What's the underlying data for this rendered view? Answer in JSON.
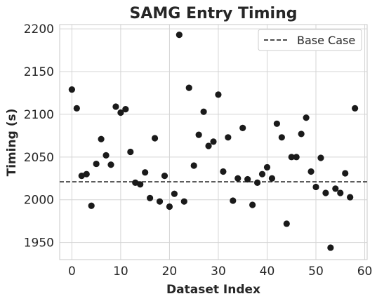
{
  "chart_data": {
    "type": "scatter",
    "title": "SAMG Entry Timing",
    "xlabel": "Dataset Index",
    "ylabel": "Timing (s)",
    "xlim": [
      -2.5,
      60.5
    ],
    "ylim": [
      1930,
      2205
    ],
    "xticks": [
      0,
      10,
      20,
      30,
      40,
      50,
      60
    ],
    "yticks": [
      1950,
      2000,
      2050,
      2100,
      2150,
      2200
    ],
    "grid": true,
    "point_color": "#1a1a1a",
    "reference_line": {
      "label": "Base Case",
      "y": 2021,
      "style": "dashed",
      "color": "#333333"
    },
    "legend": {
      "placement": "top-right",
      "entries": [
        "Base Case"
      ]
    },
    "series": [
      {
        "x": [
          0,
          1,
          2,
          3,
          4,
          5,
          6,
          7,
          8,
          9,
          10,
          11,
          12,
          13,
          14,
          15,
          16,
          17,
          18,
          19,
          20,
          21,
          22,
          23,
          24,
          25,
          26,
          27,
          28,
          29,
          30,
          31,
          32,
          33,
          34,
          35,
          36,
          37,
          38,
          39,
          40,
          41,
          42,
          43,
          44,
          45,
          46,
          47,
          48,
          49,
          50,
          51,
          52,
          53,
          54,
          55,
          56,
          57,
          58
        ],
        "y": [
          2129,
          2107,
          2028,
          2030,
          1993,
          2042,
          2071,
          2052,
          2041,
          2109,
          2102,
          2106,
          2056,
          2020,
          2018,
          2032,
          2002,
          2072,
          1998,
          2028,
          1992,
          2007,
          2193,
          1998,
          2131,
          2040,
          2076,
          2103,
          2063,
          2068,
          2123,
          2033,
          2073,
          1999,
          2025,
          2084,
          2024,
          1994,
          2020,
          2030,
          2038,
          2025,
          2089,
          2073,
          1972,
          2050,
          2050,
          2077,
          2096,
          2033,
          2015,
          2049,
          2008,
          1944,
          2013,
          2008,
          2031,
          2003,
          2107
        ]
      }
    ]
  }
}
